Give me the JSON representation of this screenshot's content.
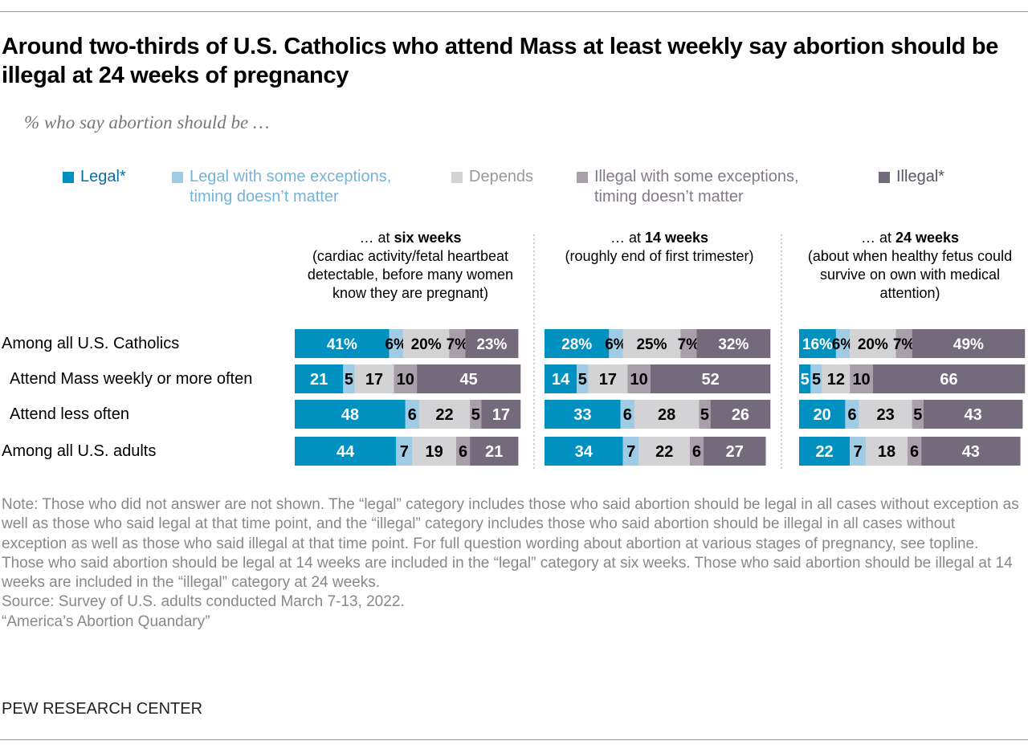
{
  "title": "Around two-thirds of U.S. Catholics who attend Mass at least weekly say abortion should be illegal at 24 weeks of pregnancy",
  "subtitle": "% who say abortion should be …",
  "colors": {
    "legal": "#0091c1",
    "legal_exc": "#9fcbe4",
    "depends": "#d3d3d5",
    "illegal_exc": "#a99fab",
    "illegal": "#736a7c"
  },
  "legend": [
    {
      "label": "Legal*",
      "line2": "",
      "color": "#0091c1",
      "text_color": "#0a6fa3"
    },
    {
      "label": "Legal with some exceptions,",
      "line2": "timing doesn’t matter",
      "color": "#9fcbe4",
      "text_color": "#74b3d8"
    },
    {
      "label": "Depends",
      "line2": "",
      "color": "#d3d3d5",
      "text_color": "#999999"
    },
    {
      "label": "Illegal with some exceptions,",
      "line2": "timing doesn’t matter",
      "color": "#a99fab",
      "text_color": "#83798a"
    },
    {
      "label": "Illegal*",
      "line2": "",
      "color": "#736a7c",
      "text_color": "#5d5468"
    }
  ],
  "chart_data": {
    "type": "bar",
    "stacked": true,
    "orientation": "horizontal",
    "categories": [
      "Among all U.S. Catholics",
      "Attend Mass weekly or more often",
      "Attend less often",
      "Among all U.S. adults"
    ],
    "segments": [
      "Legal*",
      "Legal with some exceptions, timing doesn’t matter",
      "Depends",
      "Illegal with some exceptions, timing doesn’t matter",
      "Illegal*"
    ],
    "panels": [
      {
        "pre": "… at ",
        "bold": "six weeks",
        "desc": [
          "(cardiac activity/fetal heartbeat",
          "detectable, before many women",
          "know they are pregnant)"
        ],
        "values": [
          [
            41,
            6,
            20,
            7,
            23
          ],
          [
            21,
            5,
            17,
            10,
            45
          ],
          [
            48,
            6,
            22,
            5,
            17
          ],
          [
            44,
            7,
            19,
            6,
            21
          ]
        ]
      },
      {
        "pre": "… at ",
        "bold": "14 weeks",
        "desc": [
          "(roughly end of first trimester)"
        ],
        "values": [
          [
            28,
            6,
            25,
            7,
            32
          ],
          [
            14,
            5,
            17,
            10,
            52
          ],
          [
            33,
            6,
            28,
            5,
            26
          ],
          [
            34,
            7,
            22,
            6,
            27
          ]
        ]
      },
      {
        "pre": "… at ",
        "bold": "24 weeks",
        "desc": [
          "(about when healthy fetus could",
          "survive on own with medical",
          "attention)"
        ],
        "values": [
          [
            16,
            6,
            20,
            7,
            49
          ],
          [
            5,
            5,
            12,
            10,
            66
          ],
          [
            20,
            6,
            23,
            5,
            43
          ],
          [
            22,
            7,
            18,
            6,
            43
          ]
        ]
      }
    ]
  },
  "note": "Note: Those who did not answer are not shown. The “legal” category includes those who said abortion should be legal in all cases without exception as well as those who said legal at that time point, and the “illegal” category includes those who said abortion should be illegal in all cases without exception as well as those who said illegal at that time point. For full question wording about abortion at various stages of pregnancy, see topline. Those who said abortion should be legal at 14 weeks are included in the “legal” category at six weeks. Those who said abortion should be illegal at 14 weeks are included in the “illegal” category at 24 weeks.",
  "source": "Source: Survey of U.S. adults conducted March 7-13, 2022.",
  "report": "“America’s Abortion Quandary”",
  "brand": "PEW RESEARCH CENTER"
}
